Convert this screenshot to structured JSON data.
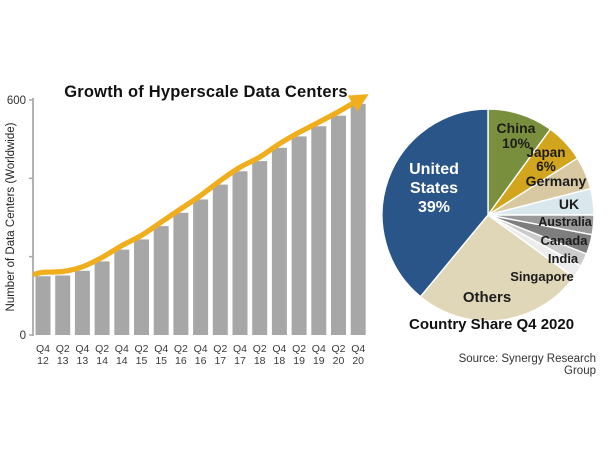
{
  "source": "Source: Synergy Research Group",
  "chart_data": [
    {
      "type": "bar",
      "title": "Growth of Hyperscale Data Centers",
      "xlabel": "",
      "ylabel": "Number of Data Centers (Worldwide)",
      "ylim": [
        0,
        600
      ],
      "y_ticks": [
        {
          "value": 600,
          "label": "600"
        },
        {
          "value": 400,
          "label": ""
        },
        {
          "value": 200,
          "label": ""
        },
        {
          "value": 0,
          "label": "0"
        }
      ],
      "grid": false,
      "legend": "none",
      "bar_color": "#A7A7A7",
      "trend_arrow_color": "#F1AE1C",
      "categories": [
        "Q4 12",
        "Q2 13",
        "Q4 13",
        "Q2 14",
        "Q4 14",
        "Q2 15",
        "Q4 15",
        "Q2 16",
        "Q4 16",
        "Q2 17",
        "Q4 17",
        "Q2 18",
        "Q4 18",
        "Q2 19",
        "Q4 19",
        "Q2 20",
        "Q4 20"
      ],
      "values": [
        150,
        152,
        164,
        188,
        218,
        244,
        278,
        312,
        346,
        384,
        418,
        444,
        478,
        507,
        533,
        560,
        590
      ]
    },
    {
      "type": "pie",
      "title": "Country Share Q4 2020",
      "start_angle_deg": 0,
      "direction": "clockwise",
      "slices": [
        {
          "label": "China",
          "value": 10,
          "pct_shown": "10%",
          "color": "#7A8F3D"
        },
        {
          "label": "Japan",
          "value": 6,
          "pct_shown": "6%",
          "color": "#D2A51F"
        },
        {
          "label": "Germany",
          "value": 5,
          "pct_shown": "",
          "color": "#D8C9A3"
        },
        {
          "label": "UK",
          "value": 4,
          "pct_shown": "",
          "color": "#D9E8EC"
        },
        {
          "label": "Australia",
          "value": 3,
          "pct_shown": "",
          "color": "#9A9A9A"
        },
        {
          "label": "Canada",
          "value": 3,
          "pct_shown": "",
          "color": "#7E7E7E"
        },
        {
          "label": "India",
          "value": 2,
          "pct_shown": "",
          "color": "#CBCBCB"
        },
        {
          "label": "Singapore",
          "value": 2,
          "pct_shown": "",
          "color": "#EDEDED"
        },
        {
          "label": "Others",
          "value": 26,
          "pct_shown": "",
          "color": "#E0D6B8"
        },
        {
          "label": "United States",
          "value": 39,
          "pct_shown": "39%",
          "color": "#2A5588"
        }
      ]
    }
  ]
}
